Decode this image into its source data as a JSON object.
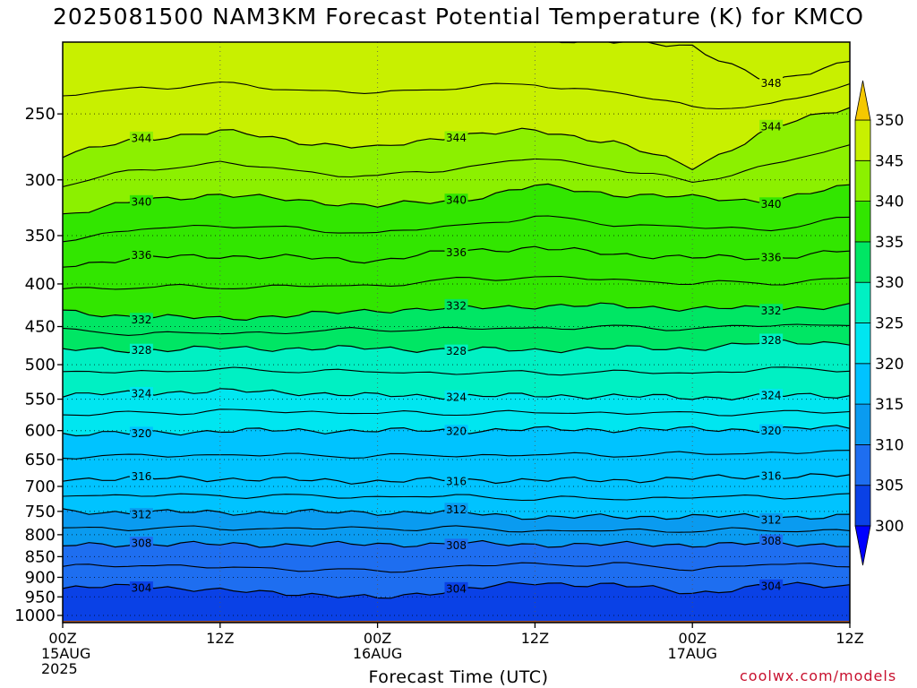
{
  "chart_data": {
    "type": "heatmap",
    "title": "2025081500 NAM3KM Forecast Potential Temperature (K) for KMCO",
    "xlabel": "Forecast Time (UTC)",
    "ylabel": "",
    "x_ticks": [
      {
        "hour": 0,
        "lines": [
          "00Z",
          "15AUG",
          "2025"
        ]
      },
      {
        "hour": 12,
        "lines": [
          "12Z"
        ]
      },
      {
        "hour": 24,
        "lines": [
          "00Z",
          "16AUG"
        ]
      },
      {
        "hour": 36,
        "lines": [
          "12Z"
        ]
      },
      {
        "hour": 48,
        "lines": [
          "00Z",
          "17AUG"
        ]
      },
      {
        "hour": 60,
        "lines": [
          "12Z"
        ]
      }
    ],
    "xlim": [
      0,
      60
    ],
    "pressure_levels_hpa": [
      250,
      300,
      350,
      400,
      450,
      500,
      550,
      600,
      650,
      700,
      750,
      800,
      850,
      900,
      950,
      1000
    ],
    "ylim_hpa": [
      1020,
      205
    ],
    "y_scale": "log",
    "grid": true,
    "colorbar": {
      "levels": [
        300,
        305,
        310,
        315,
        320,
        325,
        330,
        335,
        340,
        345,
        350
      ],
      "colors": [
        "#0000ff",
        "#0a41e6",
        "#1e6ef0",
        "#0a9bf0",
        "#00c3ff",
        "#00e6f0",
        "#00f0c3",
        "#00e664",
        "#32e600",
        "#8cf000",
        "#c8f000",
        "#ffff00",
        "#f5c800"
      ],
      "extend": "both"
    },
    "contour_interval": 2,
    "contour_labels": [
      {
        "value": 348,
        "points": [
          [
            0,
            202
          ],
          [
            12,
            202
          ],
          [
            24,
            203
          ],
          [
            36,
            203
          ],
          [
            48,
            207
          ],
          [
            54,
            230
          ],
          [
            60,
            215
          ]
        ]
      },
      {
        "value": 344,
        "points": [
          [
            0,
            280
          ],
          [
            6,
            268
          ],
          [
            12,
            262
          ],
          [
            18,
            270
          ],
          [
            24,
            275
          ],
          [
            30,
            265
          ],
          [
            36,
            262
          ],
          [
            42,
            270
          ],
          [
            48,
            290
          ],
          [
            54,
            260
          ],
          [
            60,
            245
          ]
        ]
      },
      {
        "value": 340,
        "points": [
          [
            0,
            330
          ],
          [
            6,
            318
          ],
          [
            12,
            312
          ],
          [
            18,
            318
          ],
          [
            24,
            322
          ],
          [
            30,
            318
          ],
          [
            36,
            305
          ],
          [
            42,
            312
          ],
          [
            48,
            315
          ],
          [
            54,
            318
          ],
          [
            60,
            305
          ]
        ]
      },
      {
        "value": 336,
        "points": [
          [
            0,
            380
          ],
          [
            6,
            372
          ],
          [
            12,
            370
          ],
          [
            18,
            372
          ],
          [
            24,
            375
          ],
          [
            30,
            365
          ],
          [
            36,
            362
          ],
          [
            42,
            368
          ],
          [
            48,
            372
          ],
          [
            54,
            372
          ],
          [
            60,
            365
          ]
        ]
      },
      {
        "value": 332,
        "points": [
          [
            0,
            432
          ],
          [
            6,
            438
          ],
          [
            12,
            440
          ],
          [
            18,
            436
          ],
          [
            24,
            430
          ],
          [
            30,
            428
          ],
          [
            36,
            425
          ],
          [
            42,
            425
          ],
          [
            48,
            428
          ],
          [
            54,
            428
          ],
          [
            60,
            425
          ]
        ]
      },
      {
        "value": 328,
        "points": [
          [
            0,
            480
          ],
          [
            6,
            480
          ],
          [
            12,
            478
          ],
          [
            18,
            478
          ],
          [
            24,
            478
          ],
          [
            30,
            480
          ],
          [
            36,
            480
          ],
          [
            42,
            478
          ],
          [
            48,
            478
          ],
          [
            54,
            470
          ],
          [
            60,
            470
          ]
        ]
      },
      {
        "value": 324,
        "points": [
          [
            0,
            545
          ],
          [
            6,
            540
          ],
          [
            12,
            538
          ],
          [
            18,
            540
          ],
          [
            24,
            545
          ],
          [
            30,
            545
          ],
          [
            36,
            545
          ],
          [
            42,
            545
          ],
          [
            48,
            548
          ],
          [
            54,
            545
          ],
          [
            60,
            545
          ]
        ]
      },
      {
        "value": 320,
        "points": [
          [
            0,
            605
          ],
          [
            6,
            605
          ],
          [
            12,
            600
          ],
          [
            18,
            600
          ],
          [
            24,
            600
          ],
          [
            30,
            600
          ],
          [
            36,
            598
          ],
          [
            42,
            598
          ],
          [
            48,
            598
          ],
          [
            54,
            598
          ],
          [
            60,
            595
          ]
        ]
      },
      {
        "value": 316,
        "points": [
          [
            0,
            685
          ],
          [
            6,
            685
          ],
          [
            12,
            685
          ],
          [
            18,
            688
          ],
          [
            24,
            690
          ],
          [
            30,
            688
          ],
          [
            36,
            688
          ],
          [
            42,
            688
          ],
          [
            48,
            685
          ],
          [
            54,
            680
          ],
          [
            60,
            680
          ]
        ]
      },
      {
        "value": 312,
        "points": [
          [
            0,
            750
          ],
          [
            6,
            752
          ],
          [
            12,
            752
          ],
          [
            18,
            752
          ],
          [
            24,
            752
          ],
          [
            30,
            752
          ],
          [
            36,
            762
          ],
          [
            42,
            762
          ],
          [
            48,
            760
          ],
          [
            54,
            762
          ],
          [
            60,
            760
          ]
        ]
      },
      {
        "value": 308,
        "points": [
          [
            0,
            825
          ],
          [
            6,
            820
          ],
          [
            12,
            822
          ],
          [
            18,
            822
          ],
          [
            24,
            822
          ],
          [
            30,
            820
          ],
          [
            36,
            822
          ],
          [
            42,
            822
          ],
          [
            48,
            822
          ],
          [
            54,
            820
          ],
          [
            60,
            822
          ]
        ]
      },
      {
        "value": 304,
        "points": [
          [
            0,
            930
          ],
          [
            6,
            920
          ],
          [
            12,
            935
          ],
          [
            18,
            940
          ],
          [
            24,
            955
          ],
          [
            30,
            930
          ],
          [
            36,
            915
          ],
          [
            42,
            918
          ],
          [
            48,
            940
          ],
          [
            54,
            920
          ],
          [
            60,
            920
          ]
        ]
      }
    ],
    "ground_color": "#a0522d"
  },
  "credit": "coolwx.com/models"
}
